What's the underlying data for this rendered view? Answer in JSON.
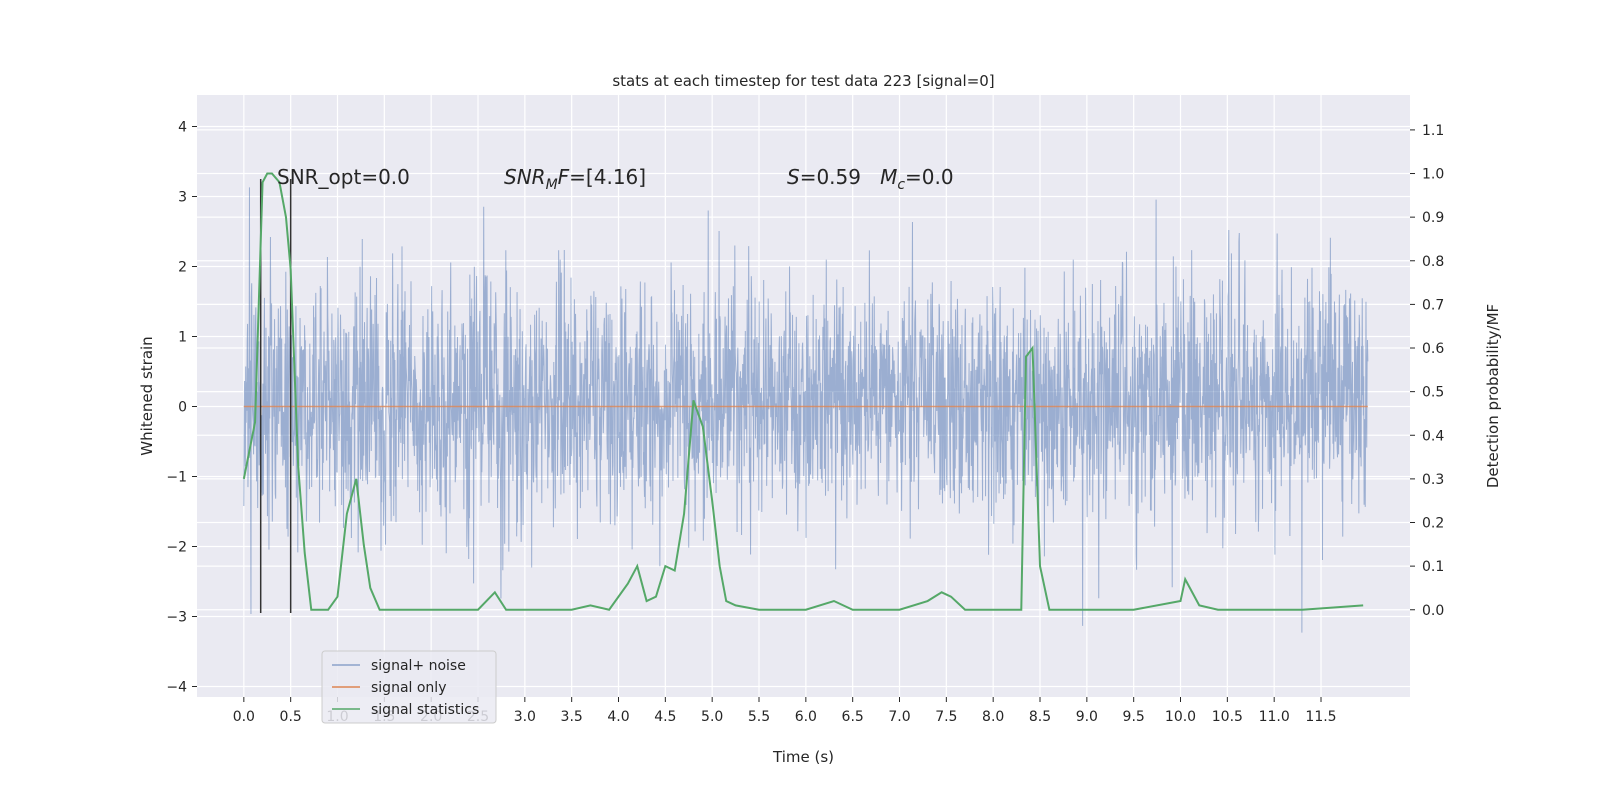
{
  "chart_data": {
    "type": "line",
    "title": "stats at each timestep for test data 223 [signal=0]",
    "xlabel": "Time (s)",
    "ylabel_left": "Whitened strain",
    "ylabel_right": "Detection probability/MF",
    "xlim": [
      -0.5,
      12.45
    ],
    "ylim_left": [
      -4.15,
      4.45
    ],
    "ylim_right": [
      -0.2,
      1.18
    ],
    "xticks": [
      "0.0",
      "0.5",
      "1.0",
      "1.5",
      "2.0",
      "2.5",
      "3.0",
      "3.5",
      "4.0",
      "4.5",
      "5.0",
      "5.5",
      "6.0",
      "6.5",
      "7.0",
      "7.5",
      "8.0",
      "8.5",
      "9.0",
      "9.5",
      "10.0",
      "10.5",
      "11.0",
      "11.5"
    ],
    "yticks_left": [
      "4",
      "3",
      "2",
      "1",
      "0",
      "−1",
      "−2",
      "−3",
      "−4"
    ],
    "yticks_right": [
      "1.1",
      "1.0",
      "0.9",
      "0.8",
      "0.7",
      "0.6",
      "0.5",
      "0.4",
      "0.3",
      "0.2",
      "0.1",
      "0.0"
    ],
    "grid": true,
    "legend_position": "lower-left",
    "annotations": {
      "snr_opt": "SNR_opt=0.0",
      "snr_mf": "SNR_MF=[4.16]",
      "stat": "S=0.59   M_c=0.0"
    },
    "series": [
      {
        "name": "signal+ noise",
        "color": "#4c72b0",
        "axis": "left",
        "t_range": [
          0.0,
          12.0
        ],
        "typical_band": [
          -1.7,
          1.9
        ],
        "extremes": [
          -3.7,
          4.1
        ]
      },
      {
        "name": "signal only",
        "color": "#dd8452",
        "axis": "left",
        "x": [
          0.0,
          12.0
        ],
        "y": [
          0.0,
          0.0
        ]
      },
      {
        "name": "signal statistics",
        "color": "#55a868",
        "axis": "right",
        "x": [
          0.0,
          0.12,
          0.2,
          0.25,
          0.3,
          0.38,
          0.45,
          0.5,
          0.58,
          0.65,
          0.72,
          0.8,
          0.9,
          1.0,
          1.1,
          1.2,
          1.28,
          1.35,
          1.45,
          1.6,
          2.0,
          2.5,
          2.68,
          2.8,
          3.0,
          3.5,
          3.7,
          3.9,
          4.1,
          4.2,
          4.3,
          4.4,
          4.5,
          4.6,
          4.7,
          4.8,
          4.9,
          5.0,
          5.08,
          5.15,
          5.25,
          5.5,
          6.0,
          6.3,
          6.5,
          7.0,
          7.3,
          7.45,
          7.55,
          7.7,
          8.0,
          8.3,
          8.35,
          8.42,
          8.5,
          8.6,
          8.75,
          9.0,
          9.5,
          10.0,
          10.05,
          10.2,
          10.4,
          11.0,
          11.1,
          11.3,
          11.95
        ],
        "y": [
          0.3,
          0.43,
          0.98,
          1.0,
          1.0,
          0.98,
          0.9,
          0.78,
          0.33,
          0.13,
          0.0,
          0.0,
          0.0,
          0.03,
          0.22,
          0.3,
          0.15,
          0.05,
          0.0,
          0.0,
          0.0,
          0.0,
          0.04,
          0.0,
          0.0,
          0.0,
          0.01,
          0.0,
          0.06,
          0.1,
          0.02,
          0.03,
          0.1,
          0.09,
          0.22,
          0.48,
          0.42,
          0.25,
          0.1,
          0.02,
          0.01,
          0.0,
          0.0,
          0.02,
          0.0,
          0.0,
          0.02,
          0.04,
          0.03,
          0.0,
          0.0,
          0.0,
          0.58,
          0.6,
          0.1,
          0.0,
          0.0,
          0.0,
          0.0,
          0.02,
          0.07,
          0.01,
          0.0,
          0.0,
          0.0,
          0.0,
          0.01
        ]
      }
    ],
    "markers": [
      {
        "x": 0.18,
        "ylim": [
          -2.95,
          3.25
        ],
        "color": "#333333"
      },
      {
        "x": 0.5,
        "ylim": [
          -2.95,
          3.25
        ],
        "color": "#333333"
      }
    ]
  }
}
